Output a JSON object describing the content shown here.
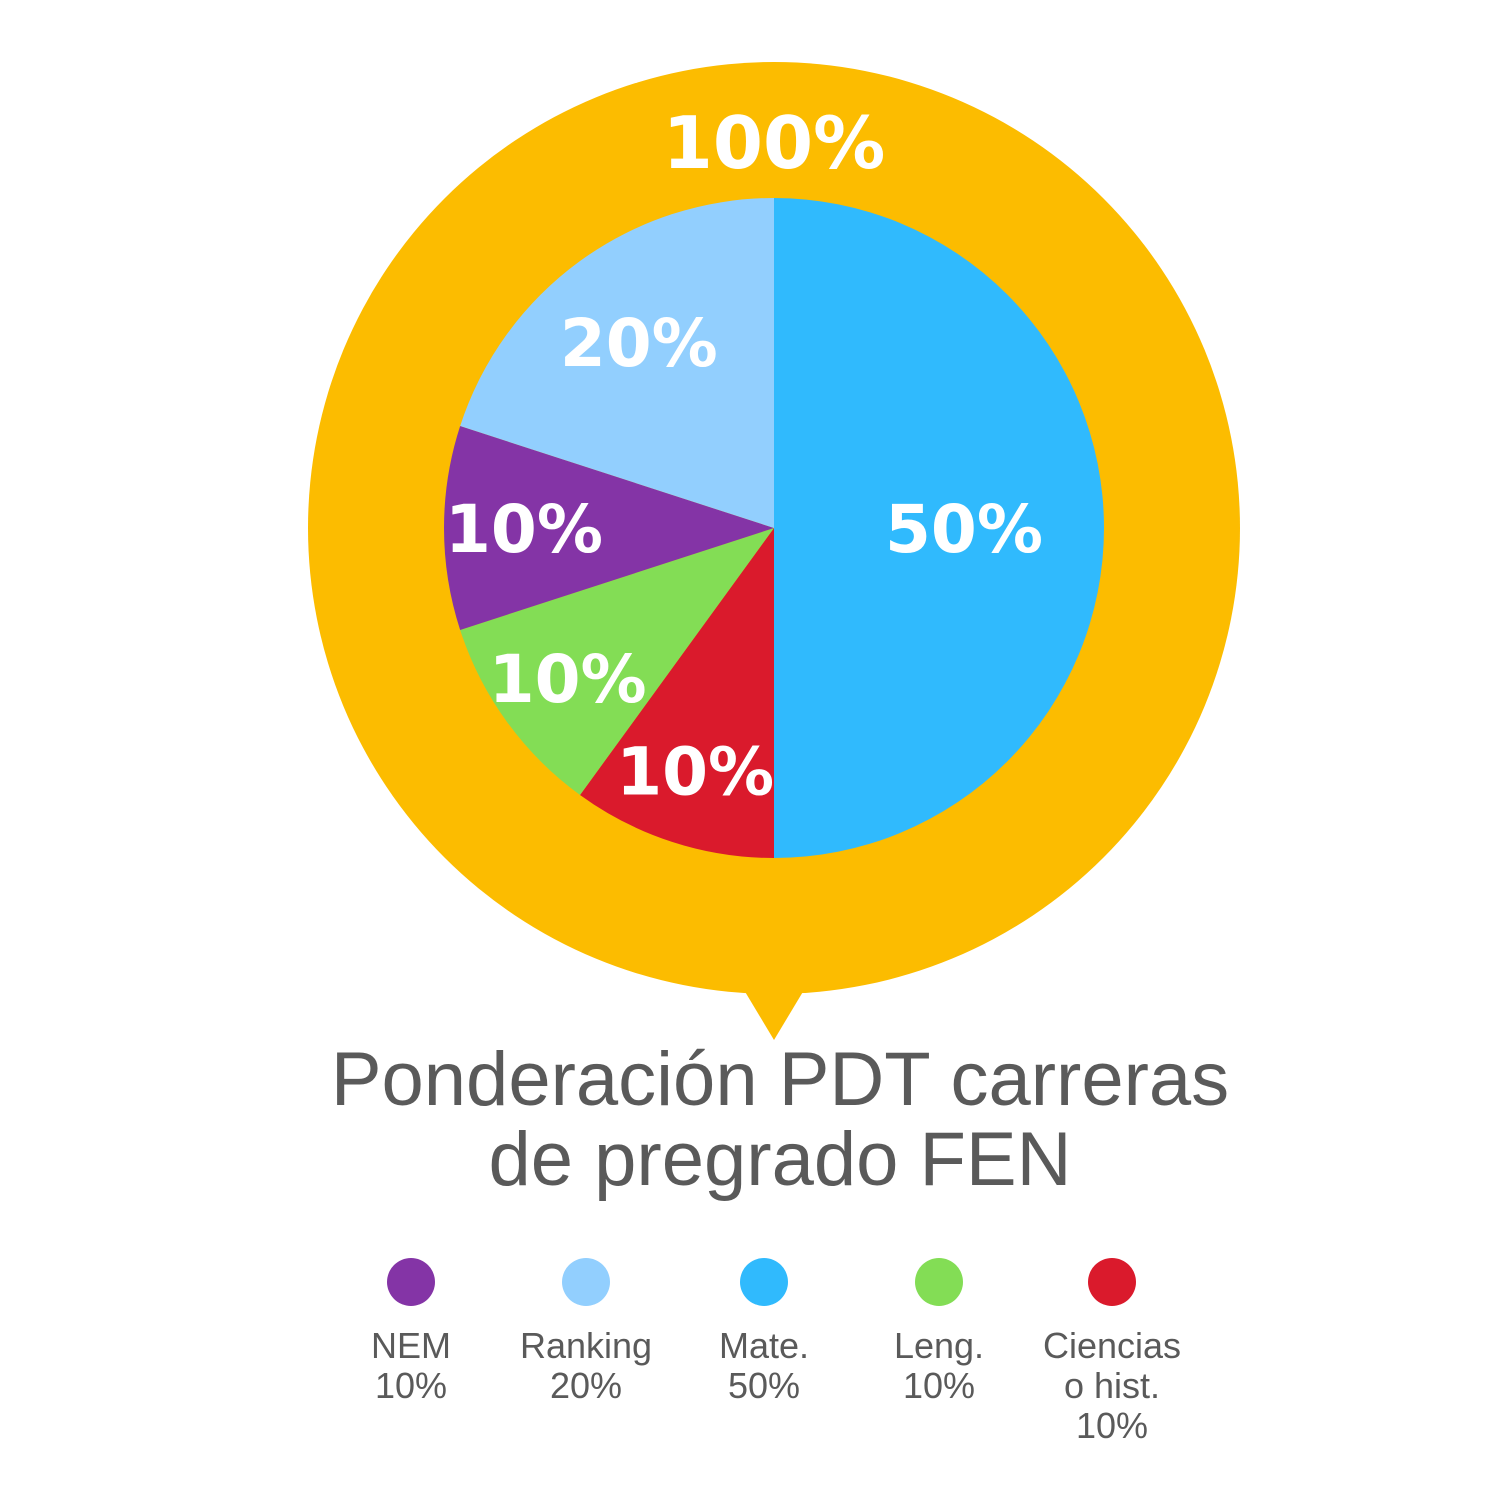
{
  "chart_data": {
    "type": "pie",
    "title": "Ponderación PDT carreras de pregrado FEN",
    "title_lines": [
      "Ponderación PDT carreras",
      "de pregrado FEN"
    ],
    "total_label": "100%",
    "slices": [
      {
        "label": "Mate.",
        "value": 50,
        "display": "50%",
        "color": "#30BAFD"
      },
      {
        "label": "Ciencias o hist.",
        "value": 10,
        "display": "10%",
        "color": "#DA1A2C"
      },
      {
        "label": "Leng.",
        "value": 10,
        "display": "10%",
        "color": "#83DD55"
      },
      {
        "label": "NEM",
        "value": 10,
        "display": "10%",
        "color": "#8434A6"
      },
      {
        "label": "Ranking",
        "value": 20,
        "display": "20%",
        "color": "#92CFFE"
      }
    ],
    "legend": [
      {
        "name": "NEM",
        "text": "NEM\n10%",
        "color": "#8434A6"
      },
      {
        "name": "Ranking",
        "text": "Ranking\n20%",
        "color": "#92CFFE"
      },
      {
        "name": "Mate.",
        "text": "Mate.\n50%",
        "color": "#30BAFD"
      },
      {
        "name": "Leng.",
        "text": "Leng.\n10%",
        "color": "#83DD55"
      },
      {
        "name": "Ciencias o hist.",
        "text": "Ciencias\no hist.\n10%",
        "color": "#DA1A2C"
      }
    ],
    "ring_color": "#FCBC00"
  }
}
